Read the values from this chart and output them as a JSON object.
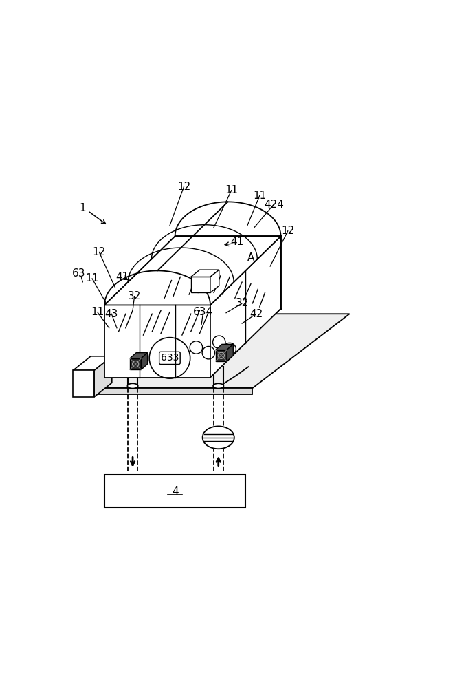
{
  "bg_color": "#ffffff",
  "line_color": "#000000",
  "label_fontsize": 10,
  "rain_lines": [
    [
      [
        0.175,
        0.545
      ],
      [
        0.195,
        0.595
      ]
    ],
    [
      [
        0.195,
        0.555
      ],
      [
        0.215,
        0.605
      ]
    ],
    [
      [
        0.245,
        0.535
      ],
      [
        0.27,
        0.595
      ]
    ],
    [
      [
        0.27,
        0.545
      ],
      [
        0.295,
        0.605
      ]
    ],
    [
      [
        0.295,
        0.54
      ],
      [
        0.32,
        0.6
      ]
    ],
    [
      [
        0.355,
        0.535
      ],
      [
        0.38,
        0.595
      ]
    ],
    [
      [
        0.38,
        0.545
      ],
      [
        0.405,
        0.605
      ]
    ],
    [
      [
        0.405,
        0.54
      ],
      [
        0.43,
        0.6
      ]
    ],
    [
      [
        0.305,
        0.64
      ],
      [
        0.325,
        0.69
      ]
    ],
    [
      [
        0.33,
        0.645
      ],
      [
        0.35,
        0.7
      ]
    ],
    [
      [
        0.375,
        0.65
      ],
      [
        0.395,
        0.7
      ]
    ],
    [
      [
        0.4,
        0.655
      ],
      [
        0.42,
        0.705
      ]
    ],
    [
      [
        0.445,
        0.655
      ],
      [
        0.465,
        0.705
      ]
    ],
    [
      [
        0.47,
        0.65
      ],
      [
        0.49,
        0.7
      ]
    ],
    [
      [
        0.505,
        0.64
      ],
      [
        0.525,
        0.685
      ]
    ],
    [
      [
        0.53,
        0.635
      ],
      [
        0.55,
        0.68
      ]
    ],
    [
      [
        0.555,
        0.625
      ],
      [
        0.57,
        0.665
      ]
    ],
    [
      [
        0.575,
        0.615
      ],
      [
        0.59,
        0.655
      ]
    ]
  ]
}
